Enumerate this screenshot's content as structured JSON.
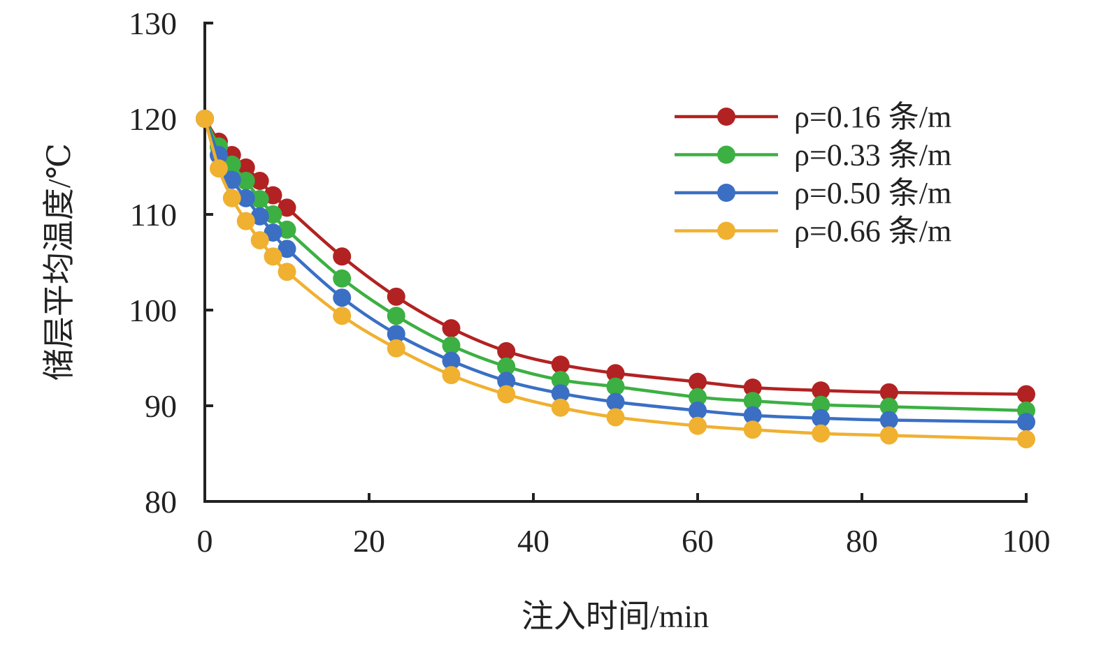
{
  "chart_data": {
    "type": "line",
    "title": "",
    "xlabel": "注入时间/min",
    "ylabel": "储层平均温度/℃",
    "xlim": [
      0,
      100
    ],
    "ylim": [
      80,
      130
    ],
    "x_ticks": [
      "0",
      "20",
      "40",
      "60",
      "80",
      "100"
    ],
    "y_ticks": [
      "80",
      "90",
      "100",
      "110",
      "120",
      "130"
    ],
    "grid": false,
    "legend_position": "top-right",
    "x": [
      0,
      1.7,
      3.3,
      5,
      6.7,
      8.3,
      10,
      16.7,
      23.3,
      30,
      36.7,
      43.3,
      50,
      60,
      66.7,
      75,
      83.3,
      100
    ],
    "series": [
      {
        "name": "ρ=0.16 条/m",
        "color": "#b22222",
        "values": [
          120,
          117.6,
          116.2,
          114.9,
          113.5,
          112.0,
          110.7,
          105.6,
          101.4,
          98.1,
          95.7,
          94.3,
          93.4,
          92.5,
          91.9,
          91.6,
          91.4,
          91.2
        ]
      },
      {
        "name": "ρ=0.33 条/m",
        "color": "#3cb043",
        "values": [
          120,
          117.1,
          115.2,
          113.5,
          111.6,
          110.0,
          108.4,
          103.3,
          99.4,
          96.3,
          94.1,
          92.7,
          92.0,
          90.9,
          90.5,
          90.1,
          89.9,
          89.5
        ]
      },
      {
        "name": "ρ=0.50 条/m",
        "color": "#3a6fc4",
        "values": [
          120,
          116.2,
          113.6,
          111.7,
          109.8,
          108.1,
          106.4,
          101.3,
          97.5,
          94.7,
          92.6,
          91.3,
          90.4,
          89.5,
          89.0,
          88.7,
          88.5,
          88.3
        ]
      },
      {
        "name": "ρ=0.66 条/m",
        "color": "#f0b030",
        "values": [
          120,
          114.8,
          111.7,
          109.3,
          107.3,
          105.6,
          104.0,
          99.4,
          96.0,
          93.2,
          91.2,
          89.8,
          88.8,
          87.9,
          87.5,
          87.1,
          86.9,
          86.5
        ]
      }
    ]
  }
}
